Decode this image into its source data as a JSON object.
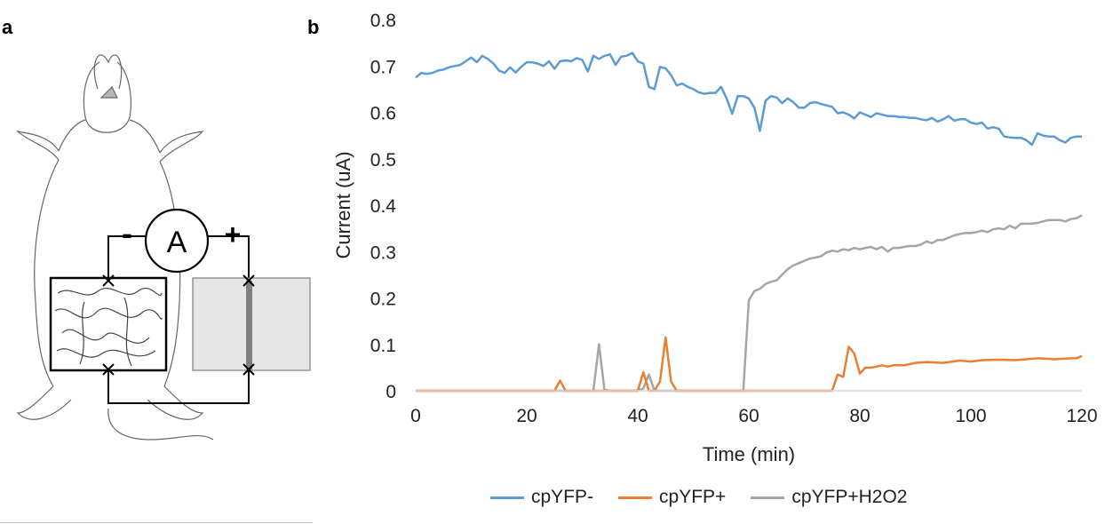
{
  "panels": {
    "a": "a",
    "b": "b"
  },
  "diagram": {
    "ammeter_label": "A",
    "minus_label": "-",
    "plus_label": "+"
  },
  "colors": {
    "cpYFP-": "#5b9bd5",
    "cpYFP+": "#ed7d31",
    "cpYFP+H2O2": "#a5a5a5"
  },
  "chart_data": {
    "type": "line",
    "xlabel": "Time (min)",
    "ylabel": "Current (uA)",
    "xlim": [
      0,
      120
    ],
    "ylim": [
      0,
      0.8
    ],
    "xticks": [
      0,
      20,
      40,
      60,
      80,
      100,
      120
    ],
    "xtick_labels": [
      "0",
      "20",
      "40",
      "60",
      "80",
      "100",
      "120"
    ],
    "yticks": [
      0,
      0.1,
      0.2,
      0.3,
      0.4,
      0.5,
      0.6,
      0.7,
      0.8
    ],
    "ytick_labels": [
      "0",
      "0.1",
      "0.2",
      "0.3",
      "0.4",
      "0.5",
      "0.6",
      "0.7",
      "0.8"
    ],
    "grid": false,
    "legend_position": "bottom",
    "series": [
      {
        "name": "cpYFP-",
        "x": [
          0,
          1,
          2,
          3,
          4,
          5,
          6,
          7,
          8,
          9,
          10,
          11,
          12,
          13,
          14,
          15,
          16,
          17,
          18,
          19,
          20,
          21,
          22,
          23,
          24,
          25,
          26,
          27,
          28,
          29,
          30,
          31,
          32,
          33,
          34,
          35,
          36,
          37,
          38,
          39,
          40,
          41,
          42,
          43,
          44,
          45,
          46,
          47,
          48,
          49,
          50,
          51,
          52,
          53,
          54,
          55,
          56,
          57,
          58,
          59,
          60,
          61,
          62,
          63,
          64,
          65,
          66,
          67,
          68,
          69,
          70,
          71,
          72,
          73,
          74,
          75,
          76,
          77,
          78,
          79,
          80,
          81,
          82,
          83,
          84,
          85,
          86,
          87,
          88,
          89,
          90,
          91,
          92,
          93,
          94,
          95,
          96,
          97,
          98,
          99,
          100,
          101,
          102,
          103,
          104,
          105,
          106,
          107,
          108,
          109,
          110,
          111,
          112,
          113,
          114,
          115,
          116,
          117,
          118,
          119,
          120
        ],
        "values": [
          0.675,
          0.685,
          0.683,
          0.685,
          0.69,
          0.692,
          0.697,
          0.7,
          0.702,
          0.71,
          0.718,
          0.708,
          0.722,
          0.715,
          0.705,
          0.69,
          0.685,
          0.697,
          0.686,
          0.698,
          0.708,
          0.708,
          0.705,
          0.7,
          0.71,
          0.694,
          0.71,
          0.712,
          0.71,
          0.717,
          0.713,
          0.688,
          0.722,
          0.715,
          0.722,
          0.725,
          0.702,
          0.72,
          0.722,
          0.728,
          0.71,
          0.705,
          0.655,
          0.65,
          0.698,
          0.695,
          0.68,
          0.658,
          0.662,
          0.655,
          0.65,
          0.643,
          0.64,
          0.642,
          0.642,
          0.655,
          0.63,
          0.597,
          0.635,
          0.635,
          0.63,
          0.61,
          0.56,
          0.625,
          0.635,
          0.632,
          0.62,
          0.63,
          0.622,
          0.61,
          0.61,
          0.62,
          0.622,
          0.618,
          0.615,
          0.612,
          0.598,
          0.6,
          0.595,
          0.587,
          0.6,
          0.595,
          0.59,
          0.598,
          0.595,
          0.592,
          0.592,
          0.59,
          0.59,
          0.588,
          0.588,
          0.585,
          0.583,
          0.588,
          0.58,
          0.585,
          0.592,
          0.582,
          0.585,
          0.585,
          0.578,
          0.575,
          0.578,
          0.565,
          0.568,
          0.565,
          0.548,
          0.546,
          0.545,
          0.545,
          0.54,
          0.53,
          0.555,
          0.55,
          0.548,
          0.548,
          0.54,
          0.535,
          0.545,
          0.548,
          0.548
        ]
      },
      {
        "name": "cpYFP+",
        "x": [
          0,
          25,
          26,
          27,
          28,
          30,
          32,
          34,
          36,
          38,
          39,
          40,
          41,
          42,
          43,
          44,
          45,
          46,
          47,
          48,
          50,
          55,
          60,
          65,
          70,
          75,
          76,
          77,
          78,
          79,
          80,
          81,
          82,
          83,
          84,
          85,
          86,
          88,
          90,
          92,
          95,
          98,
          100,
          102,
          105,
          108,
          110,
          112,
          115,
          118,
          119,
          120
        ],
        "values": [
          0,
          0,
          0.022,
          0,
          0,
          0,
          0,
          0,
          0,
          0,
          0,
          0,
          0.04,
          0,
          0,
          0.02,
          0.115,
          0.02,
          0,
          0,
          0,
          0,
          0,
          0,
          0,
          0,
          0.035,
          0.03,
          0.095,
          0.08,
          0.037,
          0.05,
          0.05,
          0.052,
          0.055,
          0.052,
          0.055,
          0.055,
          0.06,
          0.062,
          0.06,
          0.065,
          0.063,
          0.066,
          0.067,
          0.066,
          0.068,
          0.07,
          0.068,
          0.07,
          0.07,
          0.075
        ]
      },
      {
        "name": "cpYFP+H2O2",
        "x": [
          0,
          30,
          32,
          33,
          34,
          35,
          36,
          40,
          41,
          42,
          43,
          44,
          46,
          50,
          55,
          59,
          60,
          61,
          62,
          63,
          64,
          65,
          66,
          67,
          68,
          69,
          70,
          71,
          72,
          73,
          74,
          75,
          76,
          77,
          78,
          79,
          80,
          81,
          82,
          83,
          84,
          85,
          86,
          87,
          88,
          89,
          90,
          91,
          92,
          93,
          94,
          95,
          96,
          97,
          98,
          99,
          100,
          101,
          102,
          103,
          104,
          105,
          106,
          107,
          108,
          109,
          110,
          111,
          112,
          113,
          114,
          115,
          116,
          117,
          118,
          119,
          120
        ],
        "values": [
          0,
          0,
          0,
          0.1,
          0.002,
          0,
          0,
          0,
          0.005,
          0.035,
          0,
          0,
          0,
          0,
          0,
          0,
          0.195,
          0.215,
          0.22,
          0.23,
          0.235,
          0.238,
          0.25,
          0.262,
          0.27,
          0.275,
          0.28,
          0.285,
          0.287,
          0.29,
          0.298,
          0.302,
          0.3,
          0.305,
          0.303,
          0.308,
          0.305,
          0.308,
          0.31,
          0.305,
          0.31,
          0.3,
          0.308,
          0.308,
          0.31,
          0.312,
          0.312,
          0.315,
          0.322,
          0.318,
          0.325,
          0.325,
          0.33,
          0.335,
          0.338,
          0.34,
          0.34,
          0.342,
          0.345,
          0.342,
          0.348,
          0.35,
          0.348,
          0.356,
          0.35,
          0.36,
          0.36,
          0.36,
          0.362,
          0.365,
          0.368,
          0.368,
          0.368,
          0.365,
          0.37,
          0.372,
          0.378
        ]
      }
    ]
  }
}
